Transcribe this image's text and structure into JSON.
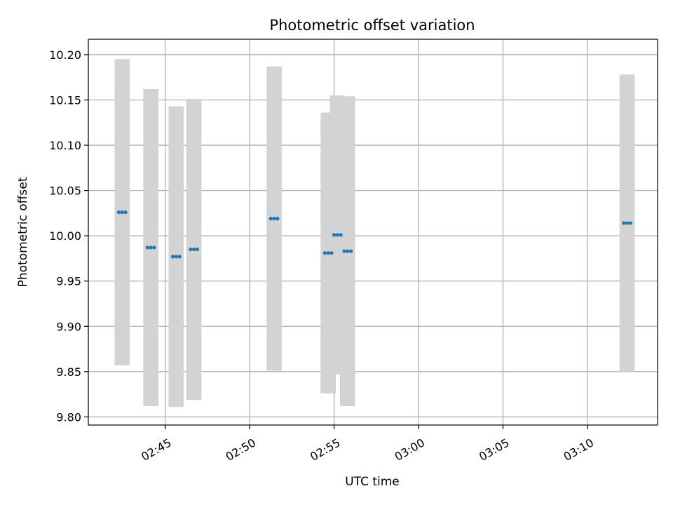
{
  "chart_data": {
    "type": "scatter",
    "title": "Photometric offset variation",
    "xlabel": "UTC time",
    "ylabel": "Photometric offset",
    "x_axis": {
      "type": "time",
      "tick_labels": [
        "02:45",
        "02:50",
        "02:55",
        "03:00",
        "03:05",
        "03:10"
      ],
      "tick_minutes": [
        165,
        170,
        175,
        180,
        185,
        190
      ],
      "range_minutes": [
        160.45,
        194.15
      ]
    },
    "y_axis": {
      "tick_labels": [
        "9.80",
        "9.85",
        "9.90",
        "9.95",
        "10.00",
        "10.05",
        "10.10",
        "10.15",
        "10.20"
      ],
      "tick_values": [
        9.8,
        9.85,
        9.9,
        9.95,
        10.0,
        10.05,
        10.1,
        10.15,
        10.2
      ],
      "ylim": [
        9.791,
        10.217
      ]
    },
    "grid": true,
    "point_color": "#1f77b4",
    "errorbar_color": "#d3d3d3",
    "points": [
      {
        "x_minutes": 162.25,
        "y": 10.026,
        "err_low": 0.169,
        "err_high": 0.169
      },
      {
        "x_minutes": 162.45,
        "y": 10.026,
        "err_low": 0.169,
        "err_high": 0.169
      },
      {
        "x_minutes": 162.65,
        "y": 10.026,
        "err_low": 0.169,
        "err_high": 0.169
      },
      {
        "x_minutes": 163.95,
        "y": 9.987,
        "err_low": 0.175,
        "err_high": 0.175
      },
      {
        "x_minutes": 164.15,
        "y": 9.987,
        "err_low": 0.175,
        "err_high": 0.175
      },
      {
        "x_minutes": 164.35,
        "y": 9.987,
        "err_low": 0.175,
        "err_high": 0.175
      },
      {
        "x_minutes": 165.45,
        "y": 9.977,
        "err_low": 0.166,
        "err_high": 0.166
      },
      {
        "x_minutes": 165.65,
        "y": 9.977,
        "err_low": 0.166,
        "err_high": 0.166
      },
      {
        "x_minutes": 165.85,
        "y": 9.977,
        "err_low": 0.166,
        "err_high": 0.166
      },
      {
        "x_minutes": 166.5,
        "y": 9.985,
        "err_low": 0.166,
        "err_high": 0.166
      },
      {
        "x_minutes": 166.7,
        "y": 9.985,
        "err_low": 0.166,
        "err_high": 0.166
      },
      {
        "x_minutes": 166.9,
        "y": 9.985,
        "err_low": 0.166,
        "err_high": 0.166
      },
      {
        "x_minutes": 171.25,
        "y": 10.019,
        "err_low": 0.168,
        "err_high": 0.168
      },
      {
        "x_minutes": 171.45,
        "y": 10.019,
        "err_low": 0.168,
        "err_high": 0.168
      },
      {
        "x_minutes": 171.65,
        "y": 10.019,
        "err_low": 0.168,
        "err_high": 0.168
      },
      {
        "x_minutes": 174.45,
        "y": 9.981,
        "err_low": 0.155,
        "err_high": 0.155
      },
      {
        "x_minutes": 174.65,
        "y": 9.981,
        "err_low": 0.155,
        "err_high": 0.155
      },
      {
        "x_minutes": 174.85,
        "y": 9.981,
        "err_low": 0.155,
        "err_high": 0.155
      },
      {
        "x_minutes": 175.0,
        "y": 10.001,
        "err_low": 0.154,
        "err_high": 0.154
      },
      {
        "x_minutes": 175.2,
        "y": 10.001,
        "err_low": 0.154,
        "err_high": 0.154
      },
      {
        "x_minutes": 175.4,
        "y": 10.001,
        "err_low": 0.154,
        "err_high": 0.154
      },
      {
        "x_minutes": 175.6,
        "y": 9.983,
        "err_low": 0.171,
        "err_high": 0.171
      },
      {
        "x_minutes": 175.8,
        "y": 9.983,
        "err_low": 0.171,
        "err_high": 0.171
      },
      {
        "x_minutes": 176.0,
        "y": 9.983,
        "err_low": 0.171,
        "err_high": 0.171
      },
      {
        "x_minutes": 192.15,
        "y": 10.014,
        "err_low": 0.164,
        "err_high": 0.164
      },
      {
        "x_minutes": 192.35,
        "y": 10.014,
        "err_low": 0.164,
        "err_high": 0.164
      },
      {
        "x_minutes": 192.55,
        "y": 10.014,
        "err_low": 0.164,
        "err_high": 0.164
      }
    ]
  }
}
